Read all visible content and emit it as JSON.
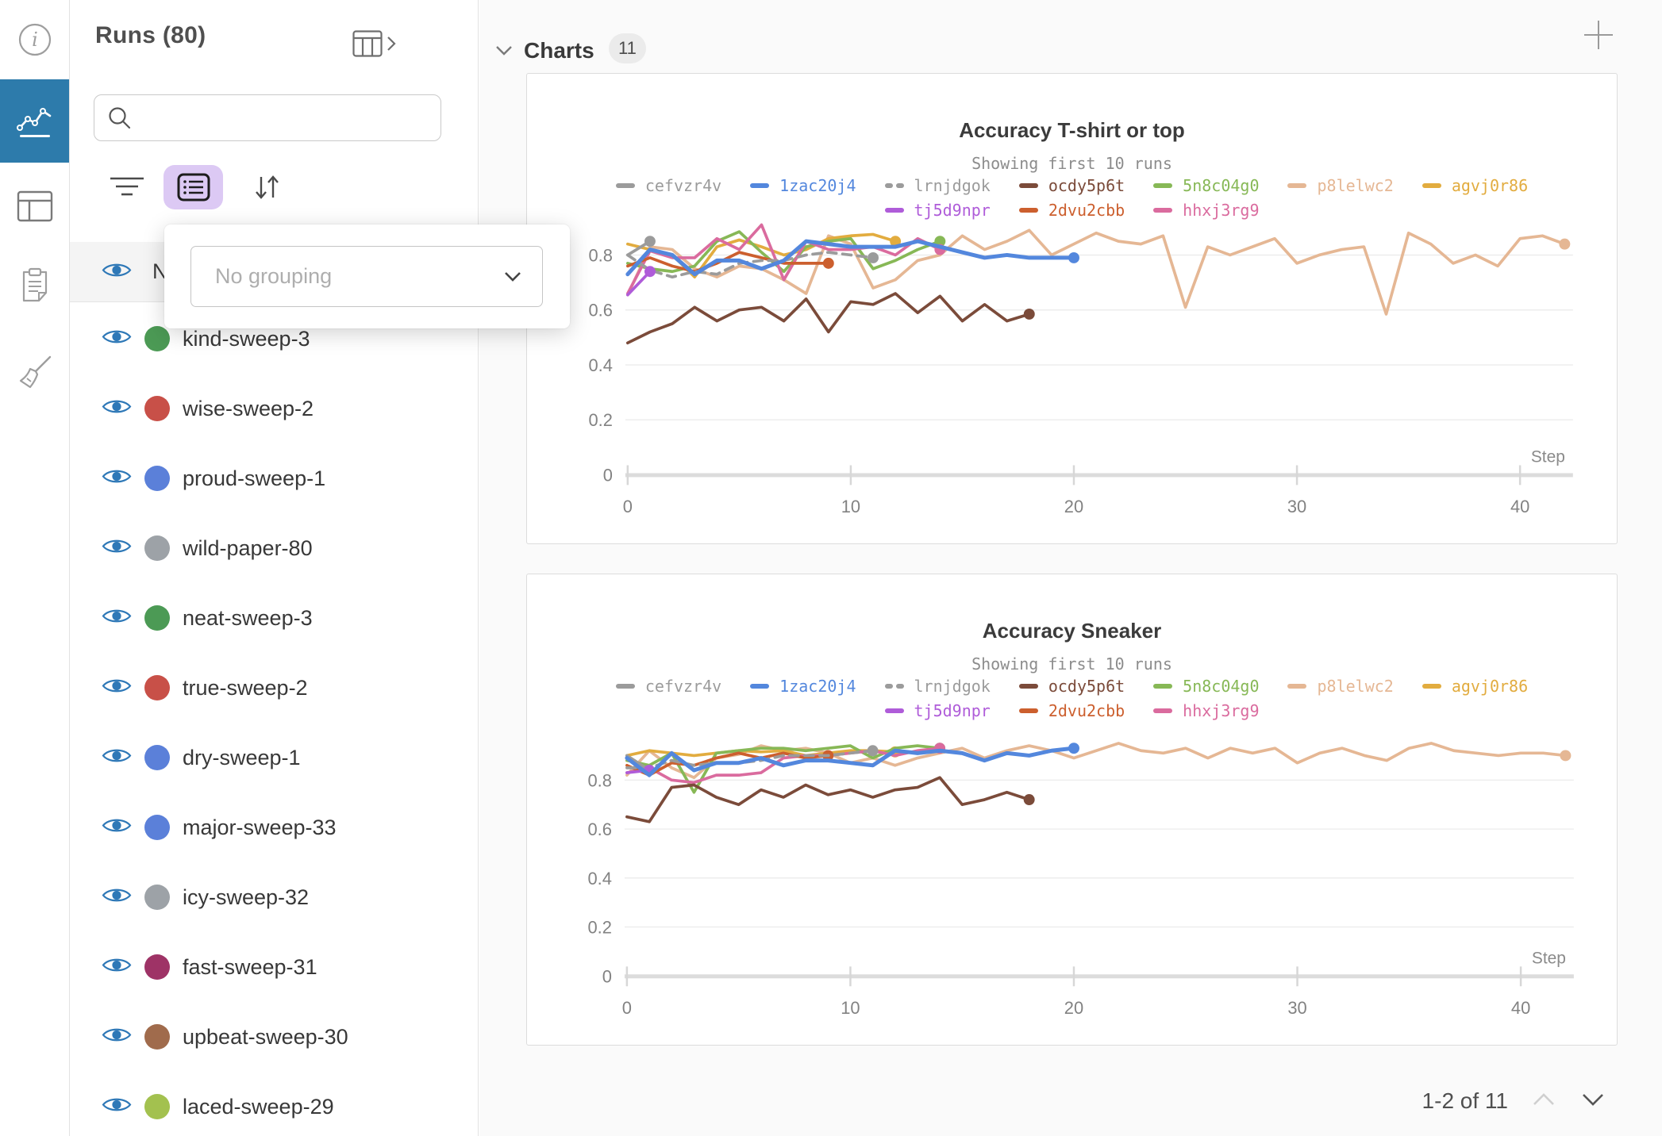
{
  "runs_panel": {
    "title": "Runs (80)",
    "search_placeholder": "",
    "header_row_label": "Na",
    "grouping_popup": {
      "placeholder": "No grouping"
    },
    "runs": [
      {
        "name": "kind-sweep-3",
        "color": "#4C9A55"
      },
      {
        "name": "wise-sweep-2",
        "color": "#C85048"
      },
      {
        "name": "proud-sweep-1",
        "color": "#5B80D9"
      },
      {
        "name": "wild-paper-80",
        "color": "#9DA2A7"
      },
      {
        "name": "neat-sweep-3",
        "color": "#4C9A55"
      },
      {
        "name": "true-sweep-2",
        "color": "#C85048"
      },
      {
        "name": "dry-sweep-1",
        "color": "#5B80D9"
      },
      {
        "name": "major-sweep-33",
        "color": "#5B80D9"
      },
      {
        "name": "icy-sweep-32",
        "color": "#9DA2A7"
      },
      {
        "name": "fast-sweep-31",
        "color": "#9E3366"
      },
      {
        "name": "upbeat-sweep-30",
        "color": "#A06B4C"
      },
      {
        "name": "laced-sweep-29",
        "color": "#A3C14F"
      }
    ]
  },
  "main": {
    "section_title": "Charts",
    "section_count": "11",
    "pagination": "1-2 of 11"
  },
  "chart_data": [
    {
      "type": "line",
      "title": "Accuracy T-shirt or top",
      "subtitle": "Showing first 10 runs",
      "xlabel": "Step",
      "x_ticks": [
        0,
        10,
        20,
        30,
        40
      ],
      "y_ticks": [
        0,
        0.2,
        0.4,
        0.6,
        0.8
      ],
      "ylim": [
        0,
        1.46
      ],
      "grid": true,
      "legend_rows": [
        [
          "cefvzr4v",
          "1zac20j4",
          "lrnjdgok",
          "ocdy5p6t",
          "5n8c04g0",
          "p8lelwc2",
          "agvj0r86"
        ],
        [
          "tj5d9npr",
          "2dvu2cbb",
          "hhxj3rg9"
        ]
      ],
      "series": [
        {
          "name": "p8lelwc2",
          "color": "#E5B794",
          "end_dot": true,
          "values": [
            0.655,
            0.83,
            0.82,
            0.75,
            0.72,
            0.76,
            0.75,
            0.71,
            0.66,
            0.87,
            0.84,
            0.68,
            0.71,
            0.78,
            0.8,
            0.87,
            0.82,
            0.85,
            0.89,
            0.8,
            0.84,
            0.88,
            0.85,
            0.84,
            0.87,
            0.61,
            0.83,
            0.8,
            0.83,
            0.86,
            0.77,
            0.8,
            0.82,
            0.83,
            0.585,
            0.88,
            0.84,
            0.77,
            0.8,
            0.76,
            0.86,
            0.87,
            0.84
          ]
        },
        {
          "name": "agvj0r86",
          "color": "#E2AC3F",
          "end_dot": true,
          "values": [
            0.84,
            0.82,
            0.8,
            0.72,
            0.83,
            0.855,
            0.83,
            0.8,
            0.82,
            0.86,
            0.87,
            0.875,
            0.85
          ]
        },
        {
          "name": "5n8c04g0",
          "color": "#87B856",
          "end_dot": true,
          "values": [
            0.77,
            0.75,
            0.74,
            0.76,
            0.85,
            0.885,
            0.81,
            0.74,
            0.83,
            0.85,
            0.86,
            0.75,
            0.78,
            0.82,
            0.85
          ]
        },
        {
          "name": "hhxj3rg9",
          "color": "#DA6B9E",
          "end_dot": true,
          "values": [
            0.66,
            0.815,
            0.79,
            0.79,
            0.86,
            0.82,
            0.91,
            0.71,
            0.85,
            0.82,
            0.82,
            0.83,
            0.8,
            0.86,
            0.82
          ]
        },
        {
          "name": "2dvu2cbb",
          "color": "#CC5F2E",
          "end_dot": true,
          "values": [
            0.76,
            0.79,
            0.76,
            0.74,
            0.77,
            0.81,
            0.79,
            0.77,
            0.77,
            0.77
          ]
        },
        {
          "name": "lrnjdgok",
          "color": "#9B9B9B",
          "dashed": true,
          "end_dot": true,
          "values": [
            0.8,
            0.745,
            0.72,
            0.74,
            0.73,
            0.77,
            0.78,
            0.78,
            0.8,
            0.81,
            0.8,
            0.79
          ]
        },
        {
          "name": "cefvzr4v",
          "color": "#9B9B9B",
          "end_dot": true,
          "values": [
            0.8,
            0.85
          ]
        },
        {
          "name": "tj5d9npr",
          "color": "#AF5CD9",
          "end_dot": true,
          "values": [
            0.655,
            0.74
          ]
        },
        {
          "name": "ocdy5p6t",
          "color": "#7B4B3A",
          "end_dot": true,
          "values": [
            0.48,
            0.52,
            0.55,
            0.61,
            0.56,
            0.6,
            0.61,
            0.56,
            0.64,
            0.52,
            0.63,
            0.62,
            0.66,
            0.59,
            0.65,
            0.56,
            0.62,
            0.56,
            0.585
          ]
        },
        {
          "name": "1zac20j4",
          "color": "#5387DD",
          "emphasis": true,
          "end_dot": true,
          "values": [
            0.73,
            0.82,
            0.8,
            0.73,
            0.78,
            0.78,
            0.75,
            0.78,
            0.85,
            0.84,
            0.83,
            0.83,
            0.83,
            0.85,
            0.83,
            0.81,
            0.79,
            0.8,
            0.79,
            0.79,
            0.79
          ]
        }
      ]
    },
    {
      "type": "line",
      "title": "Accuracy Sneaker",
      "subtitle": "Showing first 10 runs",
      "xlabel": "Step",
      "x_ticks": [
        0,
        10,
        20,
        30,
        40
      ],
      "y_ticks": [
        0,
        0.2,
        0.4,
        0.6,
        0.8
      ],
      "ylim": [
        0,
        1.64
      ],
      "grid": true,
      "legend_rows": [
        [
          "cefvzr4v",
          "1zac20j4",
          "lrnjdgok",
          "ocdy5p6t",
          "5n8c04g0",
          "p8lelwc2",
          "agvj0r86"
        ],
        [
          "tj5d9npr",
          "2dvu2cbb",
          "hhxj3rg9"
        ]
      ],
      "series": [
        {
          "name": "p8lelwc2",
          "color": "#E5B794",
          "end_dot": true,
          "values": [
            0.82,
            0.92,
            0.85,
            0.81,
            0.89,
            0.905,
            0.94,
            0.92,
            0.93,
            0.91,
            0.87,
            0.89,
            0.86,
            0.89,
            0.91,
            0.93,
            0.89,
            0.92,
            0.94,
            0.92,
            0.89,
            0.92,
            0.95,
            0.92,
            0.91,
            0.93,
            0.89,
            0.93,
            0.91,
            0.93,
            0.87,
            0.91,
            0.93,
            0.9,
            0.88,
            0.93,
            0.95,
            0.92,
            0.91,
            0.9,
            0.91,
            0.91,
            0.9
          ]
        },
        {
          "name": "agvj0r86",
          "color": "#E2AC3F",
          "end_dot": true,
          "values": [
            0.9,
            0.92,
            0.91,
            0.9,
            0.91,
            0.92,
            0.915,
            0.92,
            0.9,
            0.91,
            0.92,
            0.92,
            0.915
          ]
        },
        {
          "name": "5n8c04g0",
          "color": "#87B856",
          "end_dot": true,
          "values": [
            0.88,
            0.86,
            0.91,
            0.75,
            0.91,
            0.92,
            0.93,
            0.93,
            0.92,
            0.93,
            0.94,
            0.89,
            0.93,
            0.94,
            0.93
          ]
        },
        {
          "name": "hhxj3rg9",
          "color": "#DA6B9E",
          "end_dot": true,
          "values": [
            0.83,
            0.85,
            0.8,
            0.79,
            0.82,
            0.82,
            0.83,
            0.89,
            0.9,
            0.9,
            0.91,
            0.92,
            0.9,
            0.92,
            0.93
          ]
        },
        {
          "name": "2dvu2cbb",
          "color": "#CC5F2E",
          "end_dot": true,
          "values": [
            0.86,
            0.82,
            0.87,
            0.86,
            0.89,
            0.91,
            0.89,
            0.91,
            0.89,
            0.9
          ]
        },
        {
          "name": "lrnjdgok",
          "color": "#9B9B9B",
          "dashed": true,
          "end_dot": true,
          "values": [
            0.85,
            0.85,
            0.88,
            0.86,
            0.87,
            0.87,
            0.88,
            0.9,
            0.9,
            0.9,
            0.91,
            0.92
          ]
        },
        {
          "name": "cefvzr4v",
          "color": "#9B9B9B",
          "end_dot": true,
          "values": [
            0.9,
            0.84
          ]
        },
        {
          "name": "tj5d9npr",
          "color": "#AF5CD9",
          "end_dot": true,
          "values": [
            0.83,
            0.84
          ]
        },
        {
          "name": "ocdy5p6t",
          "color": "#7B4B3A",
          "end_dot": true,
          "values": [
            0.65,
            0.63,
            0.77,
            0.78,
            0.73,
            0.7,
            0.76,
            0.73,
            0.78,
            0.74,
            0.76,
            0.73,
            0.76,
            0.77,
            0.81,
            0.7,
            0.72,
            0.75,
            0.72
          ]
        },
        {
          "name": "1zac20j4",
          "color": "#5387DD",
          "emphasis": true,
          "end_dot": true,
          "values": [
            0.89,
            0.82,
            0.91,
            0.84,
            0.87,
            0.87,
            0.89,
            0.86,
            0.88,
            0.88,
            0.87,
            0.86,
            0.92,
            0.91,
            0.92,
            0.91,
            0.88,
            0.91,
            0.9,
            0.92,
            0.93
          ]
        }
      ]
    }
  ]
}
